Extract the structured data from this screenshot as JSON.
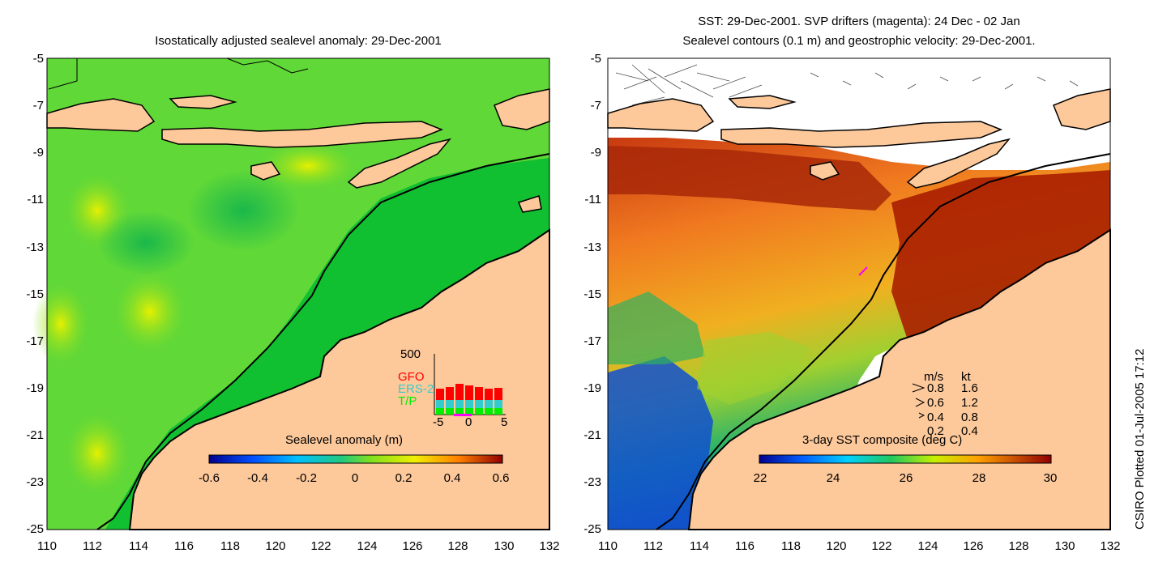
{
  "left_map": {
    "title": "Isostatically adjusted sealevel anomaly: 29-Dec-2001",
    "colorbar_label": "Sealevel anomaly (m)",
    "colorbar_ticks": [
      "-0.6",
      "-0.4",
      "-0.2",
      "0",
      "0.2",
      "0.4",
      "0.6"
    ],
    "histogram": {
      "max_label": "500",
      "x_ticks": [
        "-5",
        "0",
        "5"
      ],
      "legend": [
        {
          "label": "GFO",
          "color": "#ff0000"
        },
        {
          "label": "ERS-2",
          "color": "#33cccc"
        },
        {
          "label": "T/P",
          "color": "#00ee00"
        }
      ]
    }
  },
  "right_map": {
    "title_line1": "SST: 29-Dec-2001. SVP drifters (magenta): 24 Dec - 02 Jan",
    "title_line2": "Sealevel contours (0.1 m) and geostrophic velocity: 29-Dec-2001.",
    "colorbar_label": "3-day SST composite (deg C)",
    "colorbar_ticks": [
      "22",
      "24",
      "26",
      "28",
      "30"
    ],
    "velocity_legend": {
      "header_ms": "m/s",
      "header_kt": "kt",
      "rows": [
        {
          "ms": "0.8",
          "kt": "1.6"
        },
        {
          "ms": "0.6",
          "kt": "1.2"
        },
        {
          "ms": "0.4",
          "kt": "0.8"
        },
        {
          "ms": "0.2",
          "kt": "0.4"
        }
      ]
    }
  },
  "axes": {
    "y_ticks": [
      "-5",
      "-7",
      "-9",
      "-11",
      "-13",
      "-15",
      "-17",
      "-19",
      "-21",
      "-23",
      "-25"
    ],
    "x_ticks": [
      "110",
      "112",
      "114",
      "116",
      "118",
      "120",
      "122",
      "124",
      "126",
      "128",
      "130",
      "132"
    ]
  },
  "side_label": "CSIRO Plotted 01-Jul-2005 17:12",
  "colors": {
    "land": "#fdc89a",
    "sea_green": "#1ec83a",
    "warm_sst": "#b01e00",
    "cool_sst": "#1040c0"
  }
}
